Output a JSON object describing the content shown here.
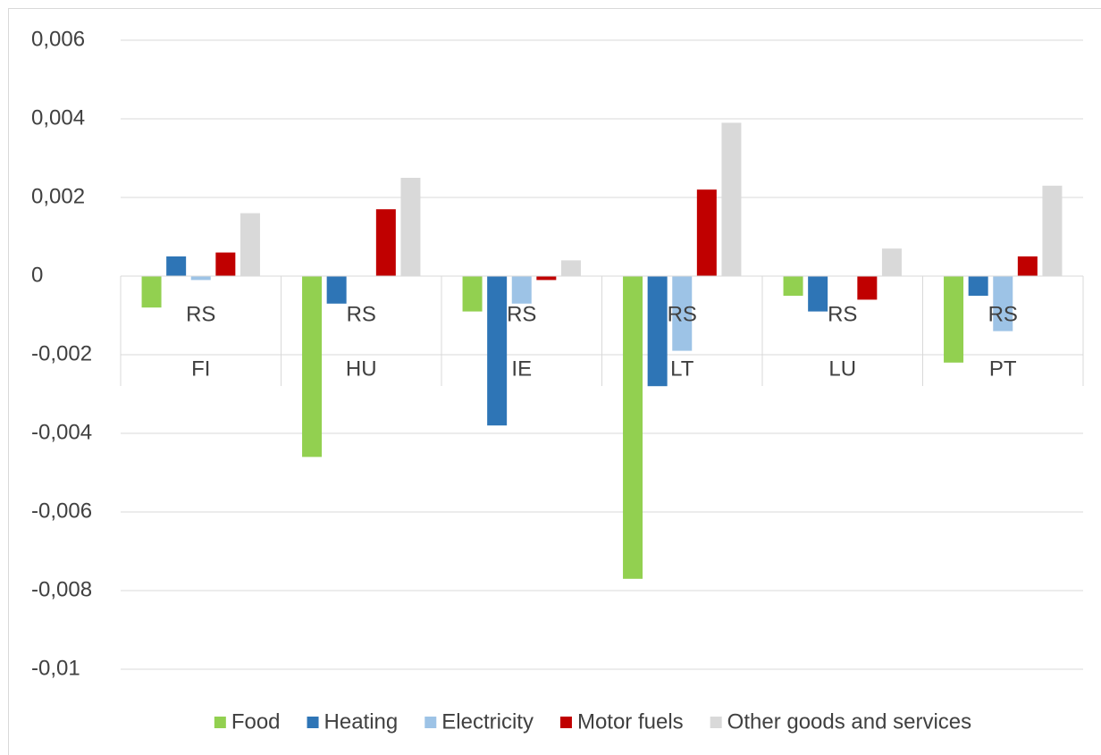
{
  "chart_data": {
    "type": "bar",
    "categories": [
      "RS",
      "RS",
      "RS",
      "RS",
      "RS",
      "RS"
    ],
    "groups": [
      "FI",
      "HU",
      "IE",
      "LT",
      "LU",
      "PT"
    ],
    "series": [
      {
        "name": "Food",
        "color": "#92d050",
        "values": [
          -0.0008,
          -0.0046,
          -0.0009,
          -0.0077,
          -0.0005,
          -0.0022
        ]
      },
      {
        "name": "Heating",
        "color": "#2e75b6",
        "values": [
          0.0005,
          -0.0007,
          -0.0038,
          -0.0028,
          -0.0009,
          -0.0005
        ]
      },
      {
        "name": "Electricity",
        "color": "#9dc3e6",
        "values": [
          -0.0001,
          0,
          -0.0007,
          -0.0019,
          0,
          -0.0014
        ]
      },
      {
        "name": "Motor fuels",
        "color": "#c00000",
        "values": [
          0.0006,
          0.0017,
          -0.0001,
          0.0022,
          -0.0006,
          0.0005
        ]
      },
      {
        "name": "Other goods and services",
        "color": "#d9d9d9",
        "values": [
          0.0016,
          0.0025,
          0.0004,
          0.0039,
          0.0007,
          0.0023
        ]
      }
    ],
    "ylim": [
      -0.01,
      0.006
    ],
    "yticks": [
      {
        "value": 0.006,
        "label": "0,006"
      },
      {
        "value": 0.004,
        "label": "0,004"
      },
      {
        "value": 0.002,
        "label": "0,002"
      },
      0,
      {
        "value": -0.002,
        "label": "-0,002"
      },
      {
        "value": -0.004,
        "label": "-0,004"
      },
      {
        "value": -0.006,
        "label": "-0,006"
      },
      {
        "value": -0.008,
        "label": "-0,008"
      },
      {
        "value": -0.01,
        "label": "-0,01"
      }
    ],
    "grid": true,
    "legend": "bottom"
  }
}
